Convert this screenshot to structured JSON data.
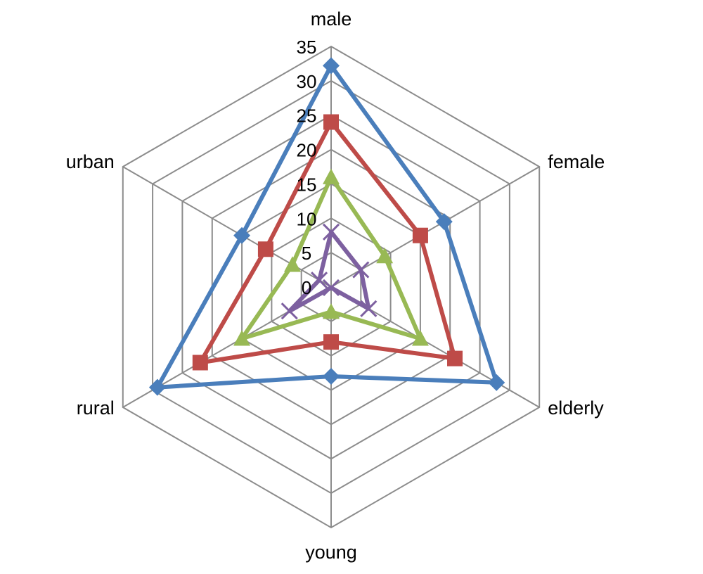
{
  "chart_data": {
    "type": "radar",
    "title": "",
    "axes": [
      "male",
      "female",
      "elderly",
      "young",
      "rural",
      "urban"
    ],
    "rlim": [
      0,
      35
    ],
    "ticks": [
      "0",
      "5",
      "10",
      "15",
      "20",
      "25",
      "30",
      "35"
    ],
    "grid": true,
    "legend": "none",
    "series": [
      {
        "values": [
          32.2,
          19.0,
          27.8,
          13.0,
          29.2,
          15.0
        ],
        "color": "#4a7ebb",
        "marker": "diamond"
      },
      {
        "values": [
          24.0,
          15.0,
          20.8,
          8.0,
          22.0,
          11.0
        ],
        "color": "#be4b48",
        "marker": "square"
      },
      {
        "values": [
          16.0,
          9.0,
          15.0,
          3.6,
          15.0,
          6.5
        ],
        "color": "#98b954",
        "marker": "triangle"
      },
      {
        "values": [
          8.0,
          5.0,
          6.3,
          0.1,
          7.0,
          2.0
        ],
        "color": "#7d60a0",
        "marker": "x"
      }
    ]
  }
}
